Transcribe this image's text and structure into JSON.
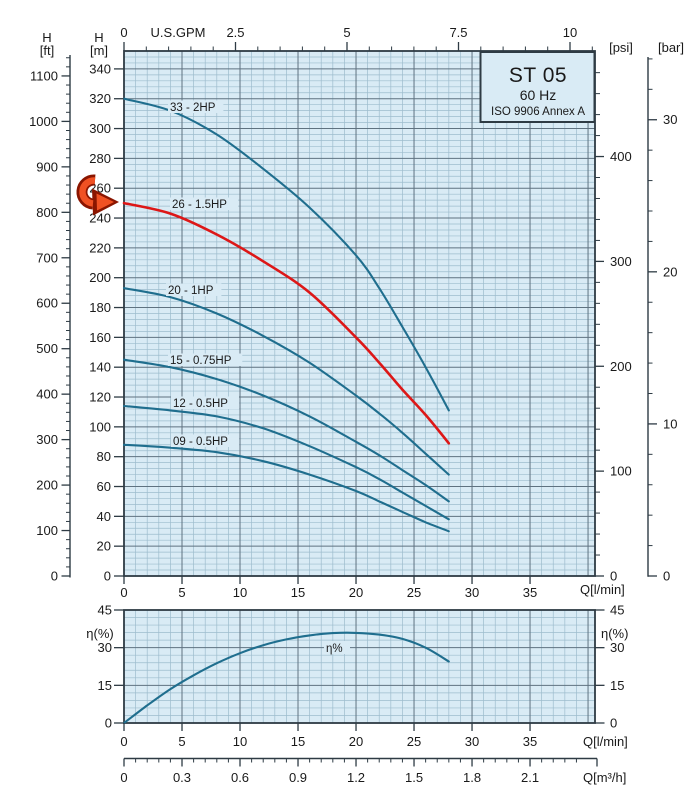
{
  "colors": {
    "plot_bg": "#d9ebf5",
    "grid_major": "#5f7280",
    "grid_minor": "#9dbccd",
    "border": "#2e3b44",
    "curve": "#1f6e8e",
    "red": "#dd1717",
    "text": "#1a1a1a",
    "arrow_fill": "#f05123",
    "arrow_stroke": "#8a1500"
  },
  "header": {
    "h": "H",
    "ft": "[ft]",
    "m": "[m]",
    "psi": "[psi]",
    "bar": "[bar]"
  },
  "chart_data": [
    {
      "name": "head-curves",
      "type": "line",
      "title": "ST 05",
      "subtitle": "60 Hz",
      "note": "ISO 9906 Annex A",
      "xlabel": "Q[l/min]",
      "xlabel_top": "U.S.GPM",
      "ylabel_left_outer": "H [ft]",
      "ylabel_left_inner": "H [m]",
      "ylabel_right_inner": "[psi]",
      "ylabel_right_outer": "[bar]",
      "xlim_lmin": [
        0,
        40.6
      ],
      "ylim_m": [
        0,
        352
      ],
      "grid": "on",
      "x_lmin": [
        0,
        4,
        8,
        12,
        16,
        20,
        22,
        24,
        26,
        28
      ],
      "series": [
        {
          "name": "33 - 2HP",
          "color_key": "curve",
          "values_m": [
            320,
            312,
            296,
            273,
            247,
            215,
            193,
            167,
            140,
            111
          ]
        },
        {
          "name": "26 - 1.5HP",
          "color_key": "red",
          "values_m": [
            250,
            243,
            229,
            211,
            190,
            160,
            143,
            125,
            108,
            89
          ]
        },
        {
          "name": "20 - 1HP",
          "color_key": "curve",
          "values_m": [
            193,
            187,
            176,
            161,
            143,
            121,
            109,
            96,
            82,
            68
          ]
        },
        {
          "name": "15 - 0.75HP",
          "color_key": "curve",
          "values_m": [
            145,
            140,
            132,
            121,
            107,
            90,
            81,
            71,
            61,
            50
          ]
        },
        {
          "name": "12 - 0.5HP",
          "color_key": "curve",
          "values_m": [
            114,
            111,
            107,
            99,
            87,
            73,
            65,
            56,
            47,
            38
          ]
        },
        {
          "name": "09 - 0.5HP",
          "color_key": "curve",
          "values_m": [
            88,
            86,
            83,
            77,
            68,
            57,
            50,
            43,
            36,
            30
          ]
        }
      ],
      "ticks": {
        "gpm": [
          "0",
          "2.5",
          "5",
          "7.5",
          "10"
        ],
        "ft": [
          "0",
          "100",
          "200",
          "300",
          "400",
          "500",
          "600",
          "700",
          "800",
          "900",
          "1000",
          "1100"
        ],
        "m": [
          "0",
          "20",
          "40",
          "60",
          "80",
          "100",
          "120",
          "140",
          "160",
          "180",
          "200",
          "220",
          "240",
          "260",
          "280",
          "300",
          "320",
          "340"
        ],
        "psi": [
          "0",
          "100",
          "200",
          "300",
          "400"
        ],
        "bar": [
          "0",
          "10",
          "20",
          "30"
        ],
        "lmin": [
          "0",
          "5",
          "10",
          "15",
          "20",
          "25",
          "30",
          "35"
        ]
      }
    },
    {
      "name": "efficiency",
      "type": "line",
      "series_label": "η%",
      "ylabel": "η(%)",
      "xlabel": "Q[l/min]",
      "xlabel2": "Q[m³/h]",
      "ylim_pct": [
        0,
        45
      ],
      "grid": "on",
      "x_lmin": [
        0,
        2,
        4,
        6,
        8,
        10,
        12,
        14,
        16,
        18,
        20,
        22,
        24,
        26,
        28
      ],
      "values_pct": [
        0,
        7,
        13.5,
        19,
        23.8,
        27.8,
        31,
        33.3,
        34.9,
        35.8,
        35.9,
        35.2,
        33.5,
        30,
        24.5
      ],
      "ticks": {
        "eta": [
          "0",
          "15",
          "30",
          "45"
        ],
        "lmin": [
          "0",
          "5",
          "10",
          "15",
          "20",
          "25",
          "30",
          "35"
        ],
        "m3h": [
          "0",
          "0.3",
          "0.6",
          "0.9",
          "1.2",
          "1.5",
          "1.8",
          "2.1"
        ]
      }
    }
  ]
}
